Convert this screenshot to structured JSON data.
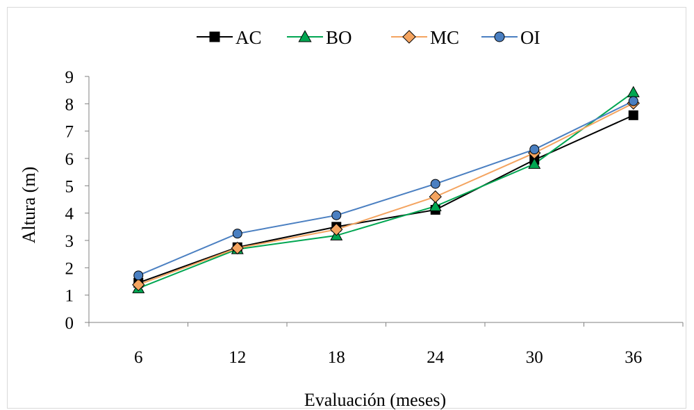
{
  "chart_data": {
    "type": "line",
    "title": "",
    "xlabel": "Evaluación (meses)",
    "ylabel": "Altura (m)",
    "categories": [
      "6",
      "12",
      "18",
      "24",
      "30",
      "36"
    ],
    "ylim": [
      0,
      9
    ],
    "yticks": [
      "0",
      "1",
      "2",
      "3",
      "4",
      "5",
      "6",
      "7",
      "8",
      "9"
    ],
    "grid": false,
    "legend_position": "top",
    "series": [
      {
        "name": "AC",
        "values": [
          1.45,
          2.75,
          3.5,
          4.12,
          5.95,
          7.58
        ],
        "color": "#000000",
        "marker": "square",
        "marker_fill": "#000000"
      },
      {
        "name": "BO",
        "values": [
          1.25,
          2.68,
          3.18,
          4.25,
          5.8,
          8.42
        ],
        "color": "#00a651",
        "marker": "triangle",
        "marker_fill": "#00a651"
      },
      {
        "name": "MC",
        "values": [
          1.38,
          2.72,
          3.4,
          4.6,
          6.2,
          8.02
        ],
        "color": "#f4a460",
        "marker": "diamond",
        "marker_fill": "#f4a460"
      },
      {
        "name": "OI",
        "values": [
          1.72,
          3.25,
          3.92,
          5.07,
          6.33,
          8.1
        ],
        "color": "#4a7fc1",
        "marker": "circle",
        "marker_fill": "#4a7fc1"
      }
    ]
  }
}
